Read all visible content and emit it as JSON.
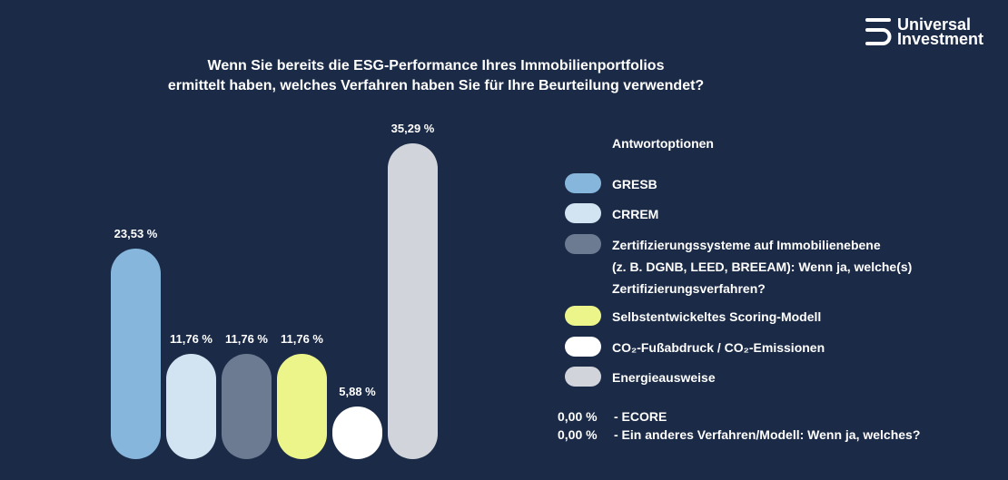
{
  "logo": {
    "line1": "Universal",
    "line2": "Investment"
  },
  "title": {
    "line1": "Wenn Sie bereits die ESG-Performance Ihres Immobilienportfolios",
    "line2": "ermittelt haben, welches Verfahren haben Sie für Ihre Beurteilung verwendet?"
  },
  "legend": {
    "title": "Antwortoptionen",
    "items": [
      {
        "label": "GRESB",
        "color": "#87b6dc"
      },
      {
        "label": "CRREM",
        "color": "#d2e3f1"
      },
      {
        "lines": [
          "Zertifizierungssysteme auf Immobilienebene",
          "(z. B. DGNB, LEED, BREEAM): Wenn ja, welche(s)",
          "Zertifizierungsverfahren?"
        ],
        "color": "#6c7b91"
      },
      {
        "label": "Selbstentwickeltes Scoring-Modell",
        "color": "#ecf58a"
      },
      {
        "label": "CO₂-Fußabdruck / CO₂-Emissionen",
        "color": "#ffffff"
      },
      {
        "label": "Energieausweise",
        "color": "#d1d4da"
      }
    ]
  },
  "extra_rows": [
    {
      "pct": "0,00 %",
      "label": "- ECORE"
    },
    {
      "pct": "0,00 %",
      "label": "- Ein anderes Verfahren/Modell: Wenn ja, welches?"
    }
  ],
  "chart_data": {
    "type": "bar",
    "categories": [
      "GRESB",
      "CRREM",
      "Zertifizierungssysteme auf Immobilienebene",
      "Selbstentwickeltes Scoring-Modell",
      "CO₂-Fußabdruck / CO₂-Emissionen",
      "Energieausweise"
    ],
    "values": [
      23.53,
      11.76,
      11.76,
      11.76,
      5.88,
      35.29
    ],
    "data_labels": [
      "23,53 %",
      "11,76 %",
      "11,76 %",
      "11,76 %",
      "5,88 %",
      "35,29 %"
    ],
    "colors": [
      "#87b6dc",
      "#d2e3f1",
      "#6c7b91",
      "#ecf58a",
      "#ffffff",
      "#d1d4da"
    ],
    "title": "",
    "xlabel": "",
    "ylabel": "",
    "grid": false
  }
}
